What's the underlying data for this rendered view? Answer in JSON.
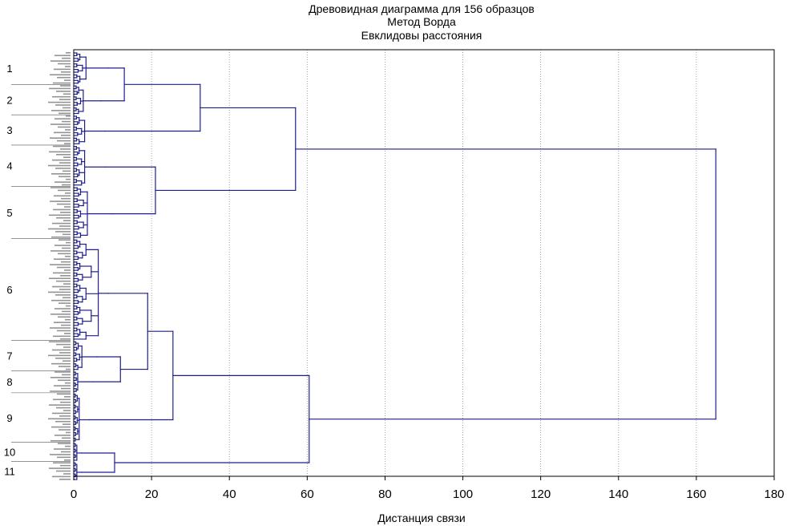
{
  "chart_data": {
    "type": "dendrogram",
    "orientation": "horizontal",
    "title": "Древовидная диаграмма для 156 образцов",
    "subtitle_1": "Метод Ворда",
    "subtitle_2": "Евклидовы расстояния",
    "xlabel": "Дистанция связи",
    "xlim": [
      0,
      180
    ],
    "xticks": [
      "0",
      "20",
      "40",
      "60",
      "80",
      "100",
      "120",
      "140",
      "160",
      "180"
    ],
    "grid": "vertical-dotted",
    "line_color": "#1f1f8c",
    "leaf_count": 156,
    "clusters": [
      {
        "label": "1",
        "leaf_start": 0,
        "leaf_end": 11
      },
      {
        "label": "2",
        "leaf_start": 12,
        "leaf_end": 22
      },
      {
        "label": "3",
        "leaf_start": 23,
        "leaf_end": 33
      },
      {
        "label": "4",
        "leaf_start": 34,
        "leaf_end": 48
      },
      {
        "label": "5",
        "leaf_start": 49,
        "leaf_end": 67
      },
      {
        "label": "6",
        "leaf_start": 68,
        "leaf_end": 104
      },
      {
        "label": "7",
        "leaf_start": 105,
        "leaf_end": 115
      },
      {
        "label": "8",
        "leaf_start": 116,
        "leaf_end": 123
      },
      {
        "label": "9",
        "leaf_start": 124,
        "leaf_end": 141
      },
      {
        "label": "10",
        "leaf_start": 142,
        "leaf_end": 148
      },
      {
        "label": "11",
        "leaf_start": 149,
        "leaf_end": 155
      }
    ],
    "cluster_heights": [
      {
        "label": "1",
        "height": 9
      },
      {
        "label": "2",
        "height": 7
      },
      {
        "label": "3",
        "height": 8
      },
      {
        "label": "4",
        "height": 8
      },
      {
        "label": "5",
        "height": 10
      },
      {
        "label": "6",
        "height": 9
      },
      {
        "label": "7",
        "height": 6
      },
      {
        "label": "8",
        "height": 5
      },
      {
        "label": "9",
        "height": 4
      },
      {
        "label": "10",
        "height": 2
      },
      {
        "label": "11",
        "height": 2
      }
    ],
    "merges": [
      {
        "id": "m12",
        "children": [
          "1",
          "2"
        ],
        "height": 13
      },
      {
        "id": "m123",
        "children": [
          "m12",
          "3"
        ],
        "height": 32.5
      },
      {
        "id": "m45",
        "children": [
          "4",
          "5"
        ],
        "height": 21
      },
      {
        "id": "mA",
        "children": [
          "m123",
          "m45"
        ],
        "height": 57
      },
      {
        "id": "m78",
        "children": [
          "7",
          "8"
        ],
        "height": 12
      },
      {
        "id": "m678",
        "children": [
          "6",
          "m78"
        ],
        "height": 19
      },
      {
        "id": "m6789",
        "children": [
          "m678",
          "9"
        ],
        "height": 25.5
      },
      {
        "id": "m1011",
        "children": [
          "10",
          "11"
        ],
        "height": 10.5
      },
      {
        "id": "mB",
        "children": [
          "m6789",
          "m1011"
        ],
        "height": 60.5
      },
      {
        "id": "root",
        "children": [
          "mA",
          "mB"
        ],
        "height": 165
      }
    ]
  }
}
